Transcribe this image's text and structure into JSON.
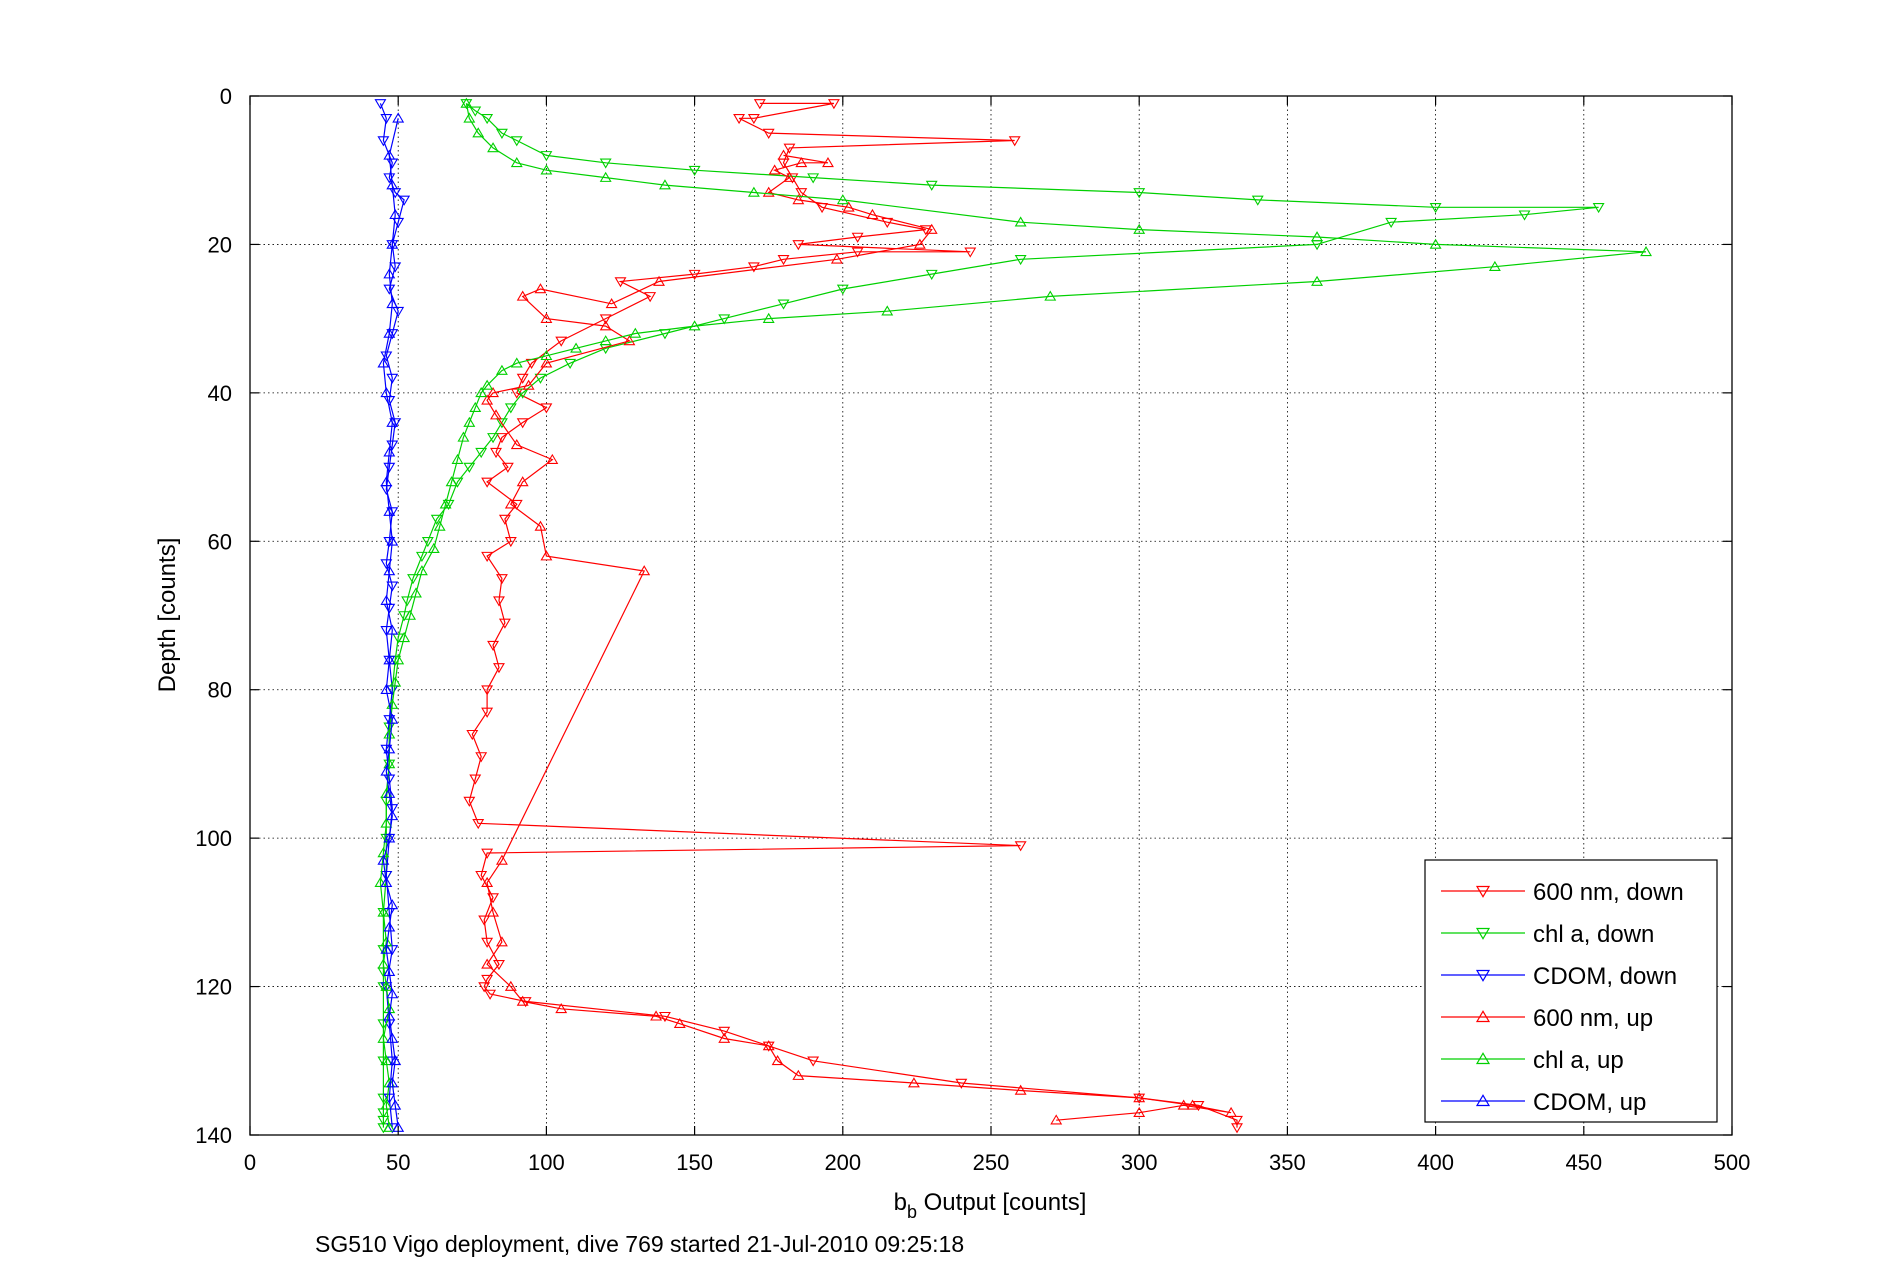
{
  "chart_data": {
    "type": "line",
    "xlabel_main": "b",
    "xlabel_sub": "b",
    "xlabel_rest": " Output [counts]",
    "ylabel": "Depth [counts]",
    "caption": "SG510 Vigo deployment, dive 769 started 21-Jul-2010 09:25:18",
    "xlim": [
      0,
      500
    ],
    "ylim": [
      0,
      140
    ],
    "y_reversed": true,
    "grid": true,
    "legend_position": "bottom-right",
    "xticks": [
      "0",
      "50",
      "100",
      "150",
      "200",
      "250",
      "300",
      "350",
      "400",
      "450",
      "500"
    ],
    "yticks": [
      "0",
      "20",
      "40",
      "60",
      "80",
      "100",
      "120",
      "140"
    ],
    "series": [
      {
        "name": "600 nm, down",
        "color": "#ff0000",
        "marker": "triangle-down",
        "x": [
          172,
          197,
          170,
          165,
          175,
          258,
          182,
          180,
          183,
          186,
          193,
          215,
          228,
          205,
          185,
          243,
          205,
          180,
          170,
          150,
          125,
          135,
          120,
          105,
          95,
          92,
          90,
          100,
          92,
          85,
          83,
          87,
          80,
          90,
          86,
          88,
          80,
          85,
          84,
          86,
          82,
          84,
          80,
          80,
          75,
          78,
          76,
          74,
          77,
          260,
          80,
          78,
          82,
          79,
          80,
          84,
          80,
          79,
          81,
          93,
          140,
          160,
          175,
          190,
          240,
          300,
          320,
          333,
          333
        ],
        "y": [
          1,
          1,
          3,
          3,
          5,
          6,
          7,
          9,
          11,
          13,
          15,
          17,
          18,
          19,
          20,
          21,
          21,
          22,
          23,
          24,
          25,
          27,
          30,
          33,
          36,
          38,
          40,
          42,
          44,
          46,
          48,
          50,
          52,
          55,
          57,
          60,
          62,
          65,
          68,
          71,
          74,
          77,
          80,
          83,
          86,
          89,
          92,
          95,
          98,
          101,
          102,
          105,
          108,
          111,
          114,
          117,
          119,
          120,
          121,
          122,
          124,
          126,
          128,
          130,
          133,
          135,
          136,
          138,
          139
        ]
      },
      {
        "name": "chl a, down",
        "color": "#00d000",
        "marker": "triangle-down",
        "x": [
          73,
          76,
          80,
          85,
          90,
          100,
          120,
          150,
          190,
          230,
          300,
          340,
          400,
          455,
          430,
          385,
          360,
          260,
          230,
          200,
          180,
          160,
          140,
          120,
          108,
          98,
          92,
          88,
          85,
          82,
          78,
          74,
          70,
          67,
          63,
          60,
          58,
          55,
          53,
          52,
          50,
          49,
          48,
          47,
          47,
          46,
          46,
          46,
          45,
          45,
          45,
          45,
          45,
          45,
          45,
          45,
          45,
          45
        ],
        "y": [
          1,
          2,
          3,
          5,
          6,
          8,
          9,
          10,
          11,
          12,
          13,
          14,
          15,
          15,
          16,
          17,
          20,
          22,
          24,
          26,
          28,
          30,
          32,
          34,
          36,
          38,
          40,
          42,
          44,
          46,
          48,
          50,
          52,
          55,
          57,
          60,
          62,
          65,
          68,
          70,
          73,
          76,
          80,
          85,
          90,
          95,
          100,
          105,
          110,
          115,
          118,
          120,
          125,
          130,
          135,
          137,
          138,
          139
        ]
      },
      {
        "name": "CDOM, down",
        "color": "#0000ff",
        "marker": "triangle-down",
        "x": [
          44,
          46,
          45,
          48,
          47,
          49,
          52,
          50,
          48,
          49,
          47,
          50,
          48,
          46,
          48,
          47,
          49,
          48,
          47,
          46,
          48,
          47,
          46,
          48,
          47,
          46,
          47,
          48,
          47,
          46,
          47,
          48,
          47,
          46,
          47,
          48,
          46,
          47,
          48,
          47,
          48
        ],
        "y": [
          1,
          3,
          6,
          9,
          11,
          13,
          14,
          17,
          20,
          23,
          26,
          29,
          32,
          35,
          38,
          41,
          44,
          47,
          50,
          53,
          56,
          60,
          63,
          66,
          69,
          72,
          76,
          80,
          84,
          88,
          92,
          96,
          100,
          105,
          110,
          115,
          120,
          125,
          130,
          135,
          139
        ]
      },
      {
        "name": "600 nm, up",
        "color": "#ff0000",
        "marker": "triangle-up",
        "x": [
          272,
          300,
          315,
          331,
          318,
          300,
          260,
          224,
          185,
          178,
          175,
          160,
          145,
          137,
          105,
          92,
          88,
          80,
          85,
          82,
          80,
          85,
          133,
          100,
          98,
          88,
          92,
          102,
          90,
          83,
          80,
          82,
          94,
          100,
          128,
          120,
          100,
          92,
          98,
          122,
          138,
          198,
          226,
          230,
          210,
          202,
          185,
          175,
          182,
          177,
          186,
          195,
          180
        ],
        "y": [
          138,
          137,
          136,
          137,
          136,
          135,
          134,
          133,
          132,
          130,
          128,
          127,
          125,
          124,
          123,
          122,
          120,
          117,
          114,
          110,
          106,
          103,
          64,
          62,
          58,
          55,
          52,
          49,
          47,
          43,
          41,
          40,
          39,
          36,
          33,
          31,
          30,
          27,
          26,
          28,
          25,
          22,
          20,
          18,
          16,
          15,
          14,
          13,
          11,
          10,
          9,
          9,
          8
        ]
      },
      {
        "name": "chl a, up",
        "color": "#00d000",
        "marker": "triangle-up",
        "x": [
          47,
          46,
          47,
          46,
          45,
          47,
          46,
          45,
          46,
          45,
          44,
          45,
          46,
          46,
          47,
          47,
          48,
          49,
          50,
          52,
          54,
          56,
          58,
          62,
          64,
          66,
          68,
          70,
          72,
          74,
          76,
          78,
          80,
          85,
          90,
          100,
          110,
          120,
          130,
          150,
          175,
          215,
          270,
          360,
          420,
          471,
          400,
          360,
          300,
          260,
          200,
          170,
          140,
          120,
          100,
          90,
          82,
          77,
          74,
          73
        ],
        "y": [
          139,
          136,
          133,
          130,
          127,
          123,
          120,
          117,
          114,
          110,
          106,
          102,
          98,
          94,
          90,
          86,
          82,
          79,
          76,
          73,
          70,
          67,
          64,
          61,
          58,
          55,
          52,
          49,
          46,
          44,
          42,
          40,
          39,
          37,
          36,
          35,
          34,
          33,
          32,
          31,
          30,
          29,
          27,
          25,
          23,
          21,
          20,
          19,
          18,
          17,
          14,
          13,
          12,
          11,
          10,
          9,
          7,
          5,
          3,
          1
        ]
      },
      {
        "name": "CDOM, up",
        "color": "#0000ff",
        "marker": "triangle-up",
        "x": [
          50,
          49,
          48,
          49,
          48,
          47,
          48,
          47,
          46,
          47,
          48,
          46,
          45,
          47,
          48,
          47,
          46,
          47,
          48,
          46,
          47,
          48,
          46,
          47,
          48,
          47,
          46,
          47,
          48,
          46,
          45,
          47,
          48,
          47,
          48,
          49,
          48,
          47,
          50
        ],
        "y": [
          139,
          136,
          133,
          130,
          127,
          124,
          121,
          118,
          115,
          112,
          109,
          106,
          103,
          100,
          97,
          94,
          91,
          88,
          84,
          80,
          76,
          72,
          68,
          64,
          60,
          56,
          52,
          48,
          44,
          40,
          36,
          32,
          28,
          24,
          20,
          16,
          12,
          8,
          3
        ]
      }
    ]
  }
}
